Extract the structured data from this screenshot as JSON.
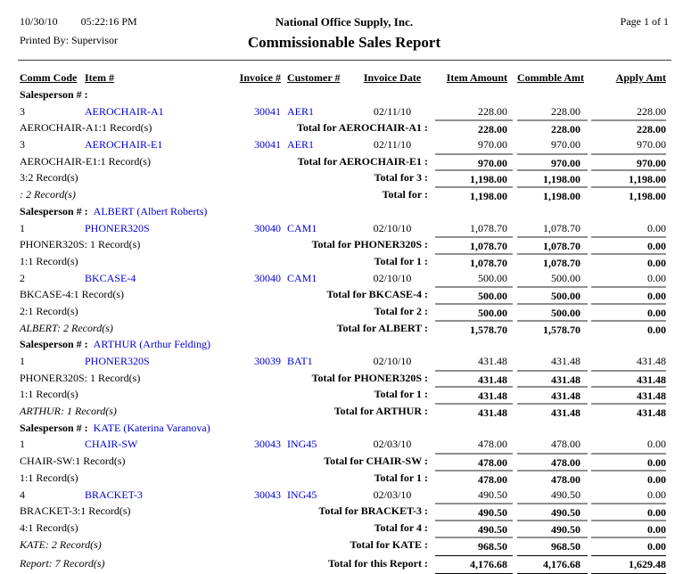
{
  "header": {
    "date": "10/30/10",
    "time": "05:22:16 PM",
    "company": "National Office Supply, Inc.",
    "page_label": "Page 1 of 1",
    "printed_by": "Printed By: Supervisor",
    "title": "Commissionable Sales Report"
  },
  "columns": {
    "comm_code": "Comm Code",
    "item": "Item #",
    "invoice": "Invoice #",
    "customer": "Customer #",
    "invoice_date": "Invoice Date",
    "item_amount": "Item Amount",
    "commble_amt": "Commble Amt",
    "apply_amt": "Apply Amt"
  },
  "colors": {
    "link": "#0000d6",
    "total_rule": "#8f8f8f",
    "report_rule": "#000000"
  },
  "rows": [
    {
      "type": "group",
      "label": "Salesperson # :",
      "name": ""
    },
    {
      "type": "detail",
      "comm": "3",
      "item": "AEROCHAIR-A1",
      "invoice": "30041",
      "customer": "AER1",
      "date": "02/11/10",
      "amounts": [
        "228.00",
        "228.00",
        "228.00"
      ]
    },
    {
      "type": "total",
      "left": "AEROCHAIR-A1:1 Record(s)",
      "italic": false,
      "label": "Total for AEROCHAIR-A1 :",
      "amounts": [
        "228.00",
        "228.00",
        "228.00"
      ]
    },
    {
      "type": "detail",
      "comm": "3",
      "item": "AEROCHAIR-E1",
      "invoice": "30041",
      "customer": "AER1",
      "date": "02/11/10",
      "amounts": [
        "970.00",
        "970.00",
        "970.00"
      ]
    },
    {
      "type": "total",
      "left": "AEROCHAIR-E1:1 Record(s)",
      "italic": false,
      "label": "Total for AEROCHAIR-E1 :",
      "amounts": [
        "970.00",
        "970.00",
        "970.00"
      ]
    },
    {
      "type": "total",
      "left": "3:2 Record(s)",
      "italic": false,
      "label": "Total for 3 :",
      "amounts": [
        "1,198.00",
        "1,198.00",
        "1,198.00"
      ]
    },
    {
      "type": "total",
      "left": ": 2 Record(s)",
      "italic": true,
      "label": "Total for :",
      "amounts": [
        "1,198.00",
        "1,198.00",
        "1,198.00"
      ]
    },
    {
      "type": "group",
      "label": "Salesperson # :",
      "name": "ALBERT (Albert Roberts)"
    },
    {
      "type": "detail",
      "comm": "1",
      "item": "PHONER320S",
      "invoice": "30040",
      "customer": "CAM1",
      "date": "02/10/10",
      "amounts": [
        "1,078.70",
        "1,078.70",
        "0.00"
      ]
    },
    {
      "type": "total",
      "left": "PHONER320S: 1 Record(s)",
      "italic": false,
      "label": "Total for PHONER320S :",
      "amounts": [
        "1,078.70",
        "1,078.70",
        "0.00"
      ]
    },
    {
      "type": "total",
      "left": "1:1 Record(s)",
      "italic": false,
      "label": "Total for 1 :",
      "amounts": [
        "1,078.70",
        "1,078.70",
        "0.00"
      ]
    },
    {
      "type": "detail",
      "comm": "2",
      "item": "BKCASE-4",
      "invoice": "30040",
      "customer": "CAM1",
      "date": "02/10/10",
      "amounts": [
        "500.00",
        "500.00",
        "0.00"
      ]
    },
    {
      "type": "total",
      "left": "BKCASE-4:1 Record(s)",
      "italic": false,
      "label": "Total for BKCASE-4 :",
      "amounts": [
        "500.00",
        "500.00",
        "0.00"
      ]
    },
    {
      "type": "total",
      "left": "2:1 Record(s)",
      "italic": false,
      "label": "Total for 2 :",
      "amounts": [
        "500.00",
        "500.00",
        "0.00"
      ]
    },
    {
      "type": "total",
      "left": "ALBERT: 2 Record(s)",
      "italic": true,
      "label": "Total for ALBERT :",
      "amounts": [
        "1,578.70",
        "1,578.70",
        "0.00"
      ]
    },
    {
      "type": "group",
      "label": "Salesperson # :",
      "name": "ARTHUR (Arthur Felding)"
    },
    {
      "type": "detail",
      "comm": "1",
      "item": "PHONER320S",
      "invoice": "30039",
      "customer": "BAT1",
      "date": "02/10/10",
      "amounts": [
        "431.48",
        "431.48",
        "431.48"
      ]
    },
    {
      "type": "total",
      "left": "PHONER320S: 1 Record(s)",
      "italic": false,
      "label": "Total for PHONER320S :",
      "amounts": [
        "431.48",
        "431.48",
        "431.48"
      ]
    },
    {
      "type": "total",
      "left": "1:1 Record(s)",
      "italic": false,
      "label": "Total for 1 :",
      "amounts": [
        "431.48",
        "431.48",
        "431.48"
      ]
    },
    {
      "type": "total",
      "left": "ARTHUR: 1 Record(s)",
      "italic": true,
      "label": "Total for ARTHUR :",
      "amounts": [
        "431.48",
        "431.48",
        "431.48"
      ]
    },
    {
      "type": "group",
      "label": "Salesperson # :",
      "name": "KATE (Katerina Varanova)"
    },
    {
      "type": "detail",
      "comm": "1",
      "item": "CHAIR-SW",
      "invoice": "30043",
      "customer": "ING45",
      "date": "02/03/10",
      "amounts": [
        "478.00",
        "478.00",
        "0.00"
      ]
    },
    {
      "type": "total",
      "left": "CHAIR-SW:1 Record(s)",
      "italic": false,
      "label": "Total for CHAIR-SW :",
      "amounts": [
        "478.00",
        "478.00",
        "0.00"
      ]
    },
    {
      "type": "total",
      "left": "1:1 Record(s)",
      "italic": false,
      "label": "Total for 1 :",
      "amounts": [
        "478.00",
        "478.00",
        "0.00"
      ]
    },
    {
      "type": "detail",
      "comm": "4",
      "item": "BRACKET-3",
      "invoice": "30043",
      "customer": "ING45",
      "date": "02/03/10",
      "amounts": [
        "490.50",
        "490.50",
        "0.00"
      ]
    },
    {
      "type": "total",
      "left": "BRACKET-3:1 Record(s)",
      "italic": false,
      "label": "Total for BRACKET-3 :",
      "amounts": [
        "490.50",
        "490.50",
        "0.00"
      ]
    },
    {
      "type": "total",
      "left": "4:1 Record(s)",
      "italic": false,
      "label": "Total for 4 :",
      "amounts": [
        "490.50",
        "490.50",
        "0.00"
      ]
    },
    {
      "type": "total",
      "left": "KATE: 2 Record(s)",
      "italic": true,
      "label": "Total for KATE :",
      "amounts": [
        "968.50",
        "968.50",
        "0.00"
      ]
    },
    {
      "type": "report",
      "left": "Report: 7 Record(s)",
      "italic": true,
      "label": "Total for this Report :",
      "amounts": [
        "4,176.68",
        "4,176.68",
        "1,629.48"
      ]
    }
  ]
}
